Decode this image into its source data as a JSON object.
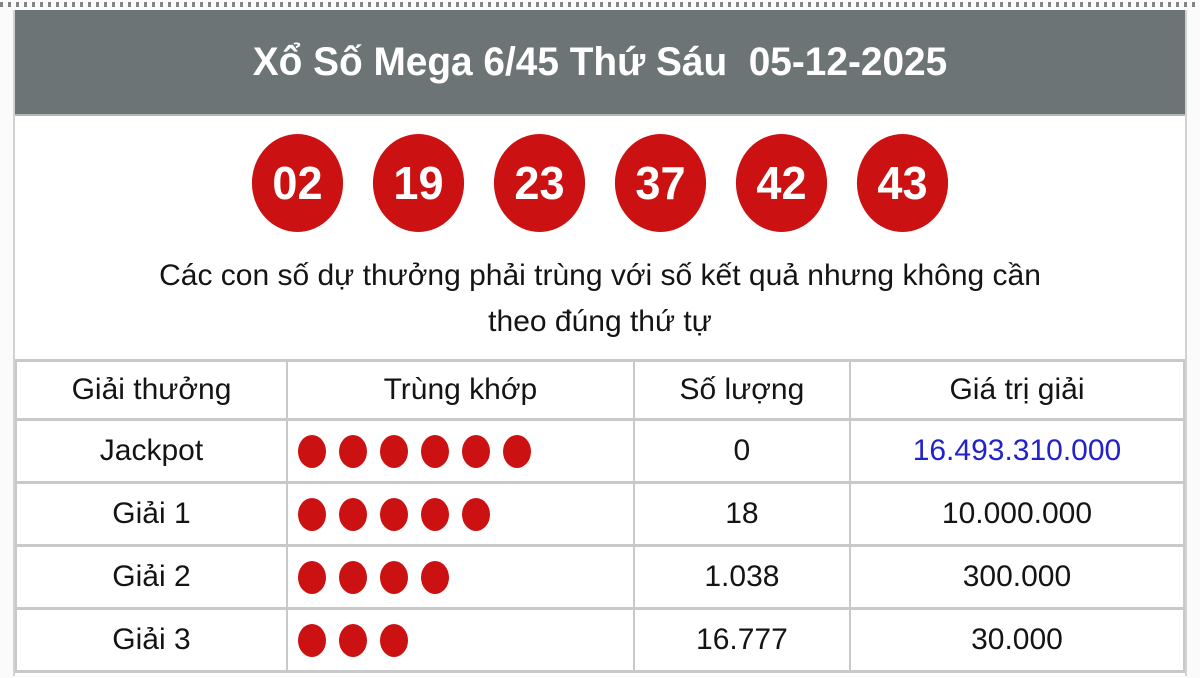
{
  "colors": {
    "accent_red": "#cb1111",
    "header_gray": "#6c7475",
    "value_blue": "#2222cc"
  },
  "header": {
    "title": "Xổ Số Mega 6/45 Thứ Sáu  05-12-2025"
  },
  "results": {
    "numbers": [
      "02",
      "19",
      "23",
      "37",
      "42",
      "43"
    ]
  },
  "note": {
    "line1": "Các con số dự thưởng phải trùng với số kết quả nhưng không cần",
    "line2": "theo đúng thứ tự"
  },
  "table": {
    "headers": [
      "Giải thưởng",
      "Trùng khớp",
      "Số lượng",
      "Giá trị giải"
    ],
    "rows": [
      {
        "prize": "Jackpot",
        "match_dots": 6,
        "count": "0",
        "value": "16.493.310.000",
        "value_is_link": true
      },
      {
        "prize": "Giải 1",
        "match_dots": 5,
        "count": "18",
        "value": "10.000.000",
        "value_is_link": false
      },
      {
        "prize": "Giải 2",
        "match_dots": 4,
        "count": "1.038",
        "value": "300.000",
        "value_is_link": false
      },
      {
        "prize": "Giải 3",
        "match_dots": 3,
        "count": "16.777",
        "value": "30.000",
        "value_is_link": false
      }
    ]
  }
}
